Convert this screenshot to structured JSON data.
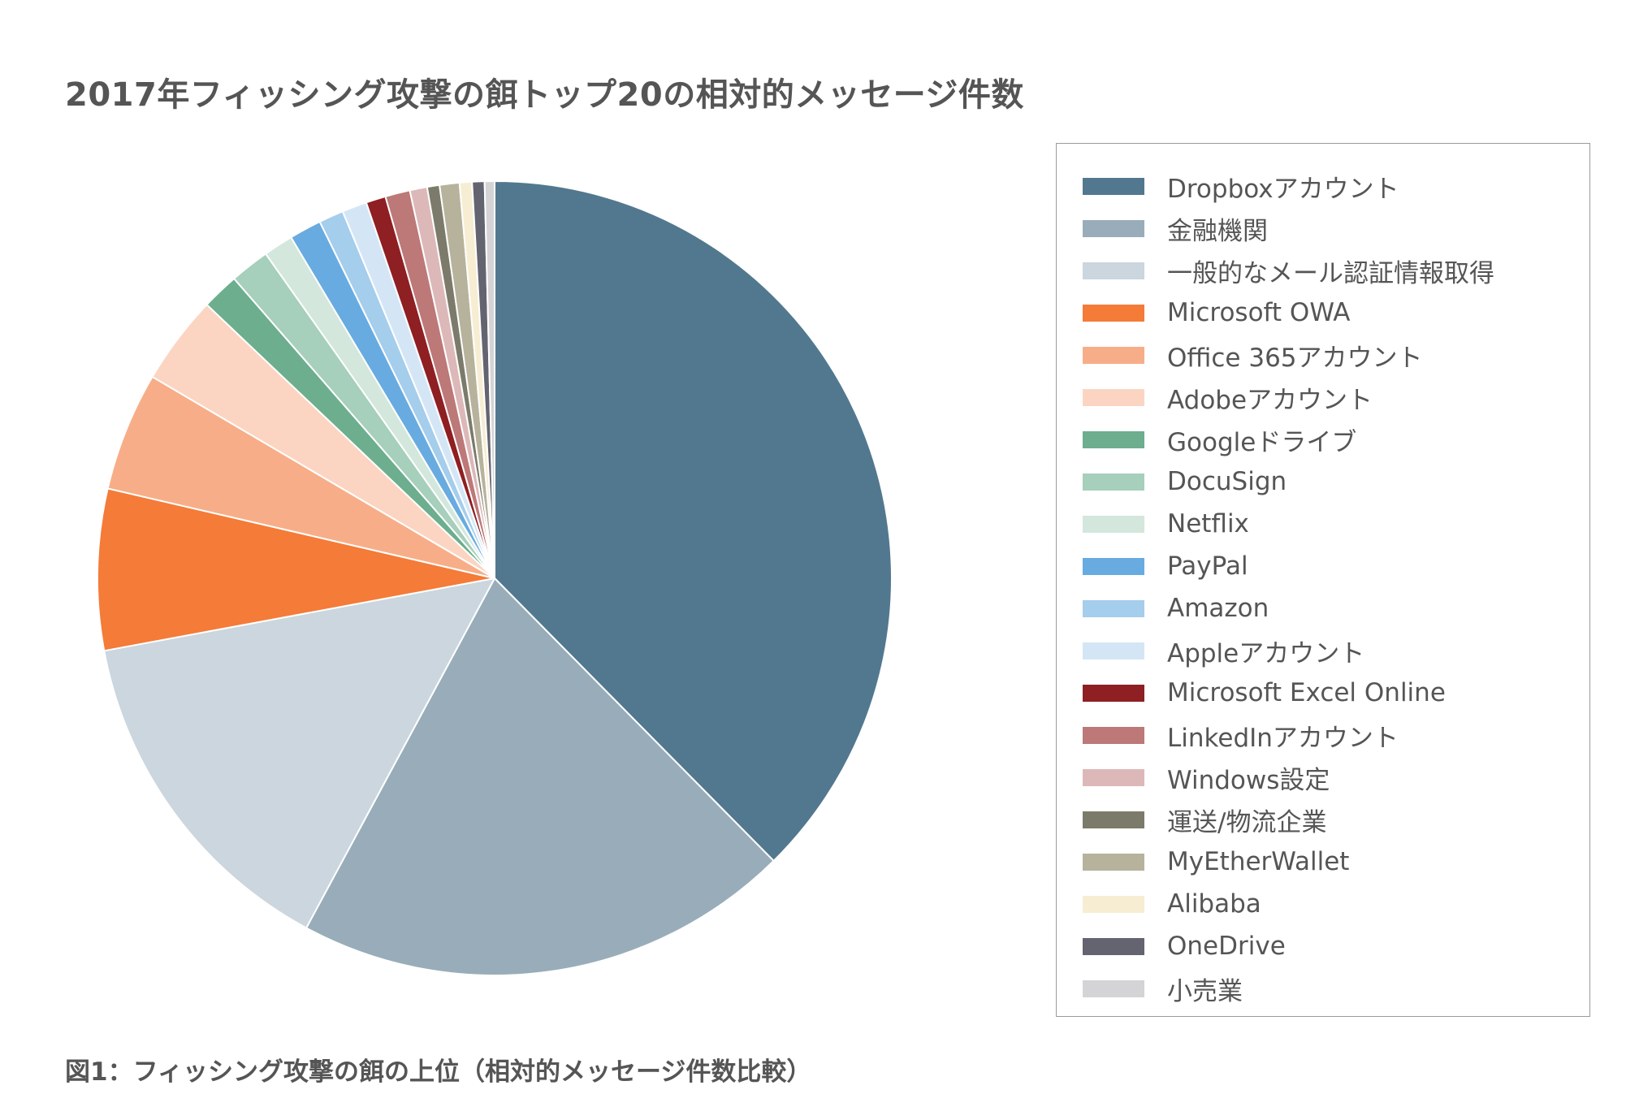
{
  "chart_data": {
    "type": "pie",
    "title": "2017年フィッシング攻撃の餌トップ20の相対的メッセージ件数",
    "caption": "図1：フィッシング攻撃の餌の上位（相対的メッセージ件数比較）",
    "legend_position": "right",
    "start_angle_deg": 0,
    "direction": "clockwise",
    "slices": [
      {
        "label": "Dropboxアカウント",
        "value": 37.3,
        "color": "#52788f"
      },
      {
        "label": "金融機関",
        "value": 20.1,
        "color": "#98adb9"
      },
      {
        "label": "一般的なメール認証情報取得",
        "value": 14.1,
        "color": "#cbd6de"
      },
      {
        "label": "Microsoft OWA",
        "value": 6.5,
        "color": "#f47b38"
      },
      {
        "label": "Office 365アカウント",
        "value": 4.8,
        "color": "#f7ae88"
      },
      {
        "label": "Adobeアカウント",
        "value": 3.6,
        "color": "#fbd5c2"
      },
      {
        "label": "Googleドライブ",
        "value": 1.5,
        "color": "#6cae8e"
      },
      {
        "label": "DocuSign",
        "value": 1.6,
        "color": "#a6cfbc"
      },
      {
        "label": "Netflix",
        "value": 1.2,
        "color": "#d3e7dc"
      },
      {
        "label": "PayPal",
        "value": 1.3,
        "color": "#68abe0"
      },
      {
        "label": "Amazon",
        "value": 1.0,
        "color": "#a5cdec"
      },
      {
        "label": "Appleアカウント",
        "value": 1.0,
        "color": "#d4e6f6"
      },
      {
        "label": "Microsoft Excel Online",
        "value": 0.8,
        "color": "#8e1f22"
      },
      {
        "label": "LinkedInアカウント",
        "value": 1.0,
        "color": "#bd7878"
      },
      {
        "label": "Windows設定",
        "value": 0.7,
        "color": "#ddb8b8"
      },
      {
        "label": "運送/物流企業",
        "value": 0.5,
        "color": "#7c7b6b"
      },
      {
        "label": "MyEtherWallet",
        "value": 0.8,
        "color": "#b7b29b"
      },
      {
        "label": "Alibaba",
        "value": 0.5,
        "color": "#f7edd2"
      },
      {
        "label": "OneDrive",
        "value": 0.5,
        "color": "#646470"
      },
      {
        "label": "小売業",
        "value": 0.4,
        "color": "#d4d4d6"
      }
    ]
  }
}
